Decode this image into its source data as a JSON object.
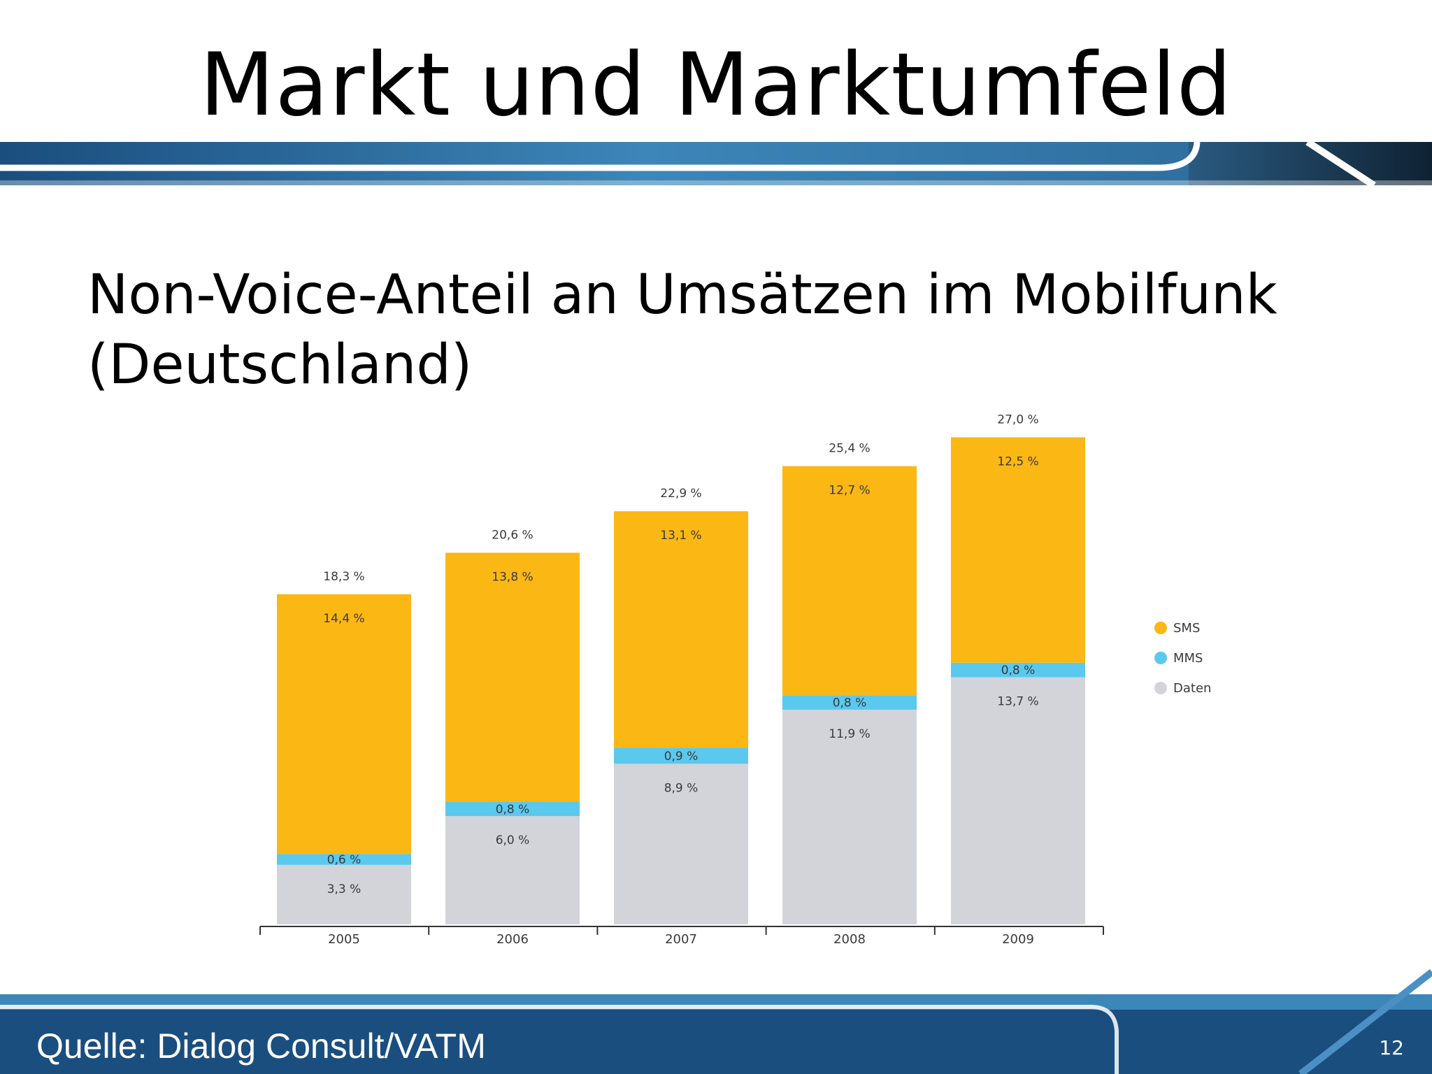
{
  "slide": {
    "title": "Markt und Marktumfeld",
    "subtitle_line1": "Non-Voice-Anteil an Umsätzen im Mobilfunk",
    "subtitle_line2": "(Deutschland)",
    "source": "Quelle: Dialog Consult/VATM",
    "page_number": "12"
  },
  "colors": {
    "sms": "#FBB714",
    "mms": "#5BC8EE",
    "daten": "#D2D4DA",
    "banner_dark": "#1A4E7E",
    "banner_light": "#3D86B8"
  },
  "chart_data": {
    "type": "bar",
    "stacked": true,
    "categories": [
      "2005",
      "2006",
      "2007",
      "2008",
      "2009"
    ],
    "series": [
      {
        "name": "Daten",
        "values": [
          3.3,
          6.0,
          8.9,
          11.9,
          13.7
        ],
        "labels": [
          "3,3 %",
          "6,0 %",
          "8,9 %",
          "11,9 %",
          "13,7 %"
        ]
      },
      {
        "name": "MMS",
        "values": [
          0.6,
          0.8,
          0.9,
          0.8,
          0.8
        ],
        "labels": [
          "0,6 %",
          "0,8 %",
          "0,9 %",
          "0,8 %",
          "0,8 %"
        ]
      },
      {
        "name": "SMS",
        "values": [
          14.4,
          13.8,
          13.1,
          12.7,
          12.5
        ],
        "labels": [
          "14,4 %",
          "13,8 %",
          "13,1 %",
          "12,7 %",
          "12,5 %"
        ]
      }
    ],
    "totals": [
      18.3,
      20.6,
      22.9,
      25.4,
      27.0
    ],
    "total_labels": [
      "18,3 %",
      "20,6 %",
      "22,9 %",
      "25,4 %",
      "27,0 %"
    ],
    "legend": [
      "SMS",
      "MMS",
      "Daten"
    ],
    "legend_position": "right",
    "grid": false,
    "ylim": [
      0,
      27.5
    ]
  }
}
